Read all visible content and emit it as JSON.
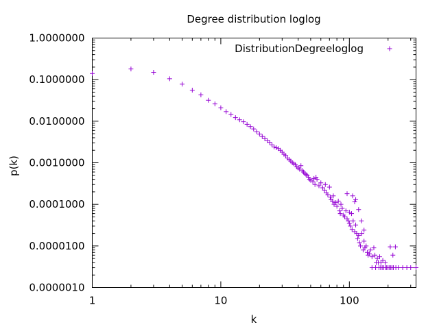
{
  "chart_data": {
    "type": "scatter",
    "title": "Degree distribution loglog",
    "xlabel": "k",
    "ylabel": "p(k)",
    "x_scale": "log",
    "y_scale": "log",
    "xlim": [
      1,
      330
    ],
    "ylim": [
      1e-06,
      1
    ],
    "x_ticks": [
      {
        "value": 1,
        "label": "1"
      },
      {
        "value": 10,
        "label": "10"
      },
      {
        "value": 100,
        "label": "100"
      }
    ],
    "y_ticks": [
      {
        "value": 1e-06,
        "label": "0.0000010"
      },
      {
        "value": 1e-05,
        "label": "0.0000100"
      },
      {
        "value": 0.0001,
        "label": "0.0001000"
      },
      {
        "value": 0.001,
        "label": "0.0010000"
      },
      {
        "value": 0.01,
        "label": "0.0100000"
      },
      {
        "value": 0.1,
        "label": "0.1000000"
      },
      {
        "value": 1,
        "label": "1.0000000"
      }
    ],
    "grid": false,
    "legend": {
      "position": "top-right"
    },
    "color": "#9400d3",
    "series": [
      {
        "name": "DistributionDegreeloglog",
        "marker": "plus",
        "points": [
          [
            1,
            0.14
          ],
          [
            2,
            0.18
          ],
          [
            3,
            0.15
          ],
          [
            4,
            0.105
          ],
          [
            5,
            0.078
          ],
          [
            6,
            0.056
          ],
          [
            7,
            0.043
          ],
          [
            8,
            0.032
          ],
          [
            9,
            0.026
          ],
          [
            10,
            0.021
          ],
          [
            11,
            0.017
          ],
          [
            12,
            0.0145
          ],
          [
            13,
            0.0122
          ],
          [
            14,
            0.0108
          ],
          [
            15,
            0.0097
          ],
          [
            16,
            0.0084
          ],
          [
            17,
            0.0074
          ],
          [
            18,
            0.0065
          ],
          [
            19,
            0.0056
          ],
          [
            20,
            0.0049
          ],
          [
            21,
            0.0043
          ],
          [
            22,
            0.0038
          ],
          [
            23,
            0.0034
          ],
          [
            24,
            0.0031
          ],
          [
            25,
            0.0027
          ],
          [
            26,
            0.0024
          ],
          [
            27,
            0.0023
          ],
          [
            28,
            0.0022
          ],
          [
            29,
            0.002
          ],
          [
            30,
            0.0018
          ],
          [
            31,
            0.0016
          ],
          [
            32,
            0.0015
          ],
          [
            33,
            0.0013
          ],
          [
            34,
            0.0012
          ],
          [
            35,
            0.0011
          ],
          [
            36,
            0.001
          ],
          [
            37,
            0.00095
          ],
          [
            38,
            0.0009
          ],
          [
            39,
            0.0008
          ],
          [
            40,
            0.00075
          ],
          [
            41,
            0.0007
          ],
          [
            42,
            0.00085
          ],
          [
            43,
            0.00065
          ],
          [
            44,
            0.0006
          ],
          [
            45,
            0.00055
          ],
          [
            46,
            0.00052
          ],
          [
            47,
            0.0005
          ],
          [
            48,
            0.00045
          ],
          [
            49,
            0.0004
          ],
          [
            50,
            0.00038
          ],
          [
            52,
            0.00035
          ],
          [
            53,
            0.00042
          ],
          [
            54,
            0.0003
          ],
          [
            55,
            0.00045
          ],
          [
            56,
            0.0004
          ],
          [
            58,
            0.00028
          ],
          [
            60,
            0.00033
          ],
          [
            62,
            0.00025
          ],
          [
            64,
            0.00022
          ],
          [
            65,
            0.0003
          ],
          [
            66,
            0.00019
          ],
          [
            68,
            0.00017
          ],
          [
            70,
            0.00026
          ],
          [
            71,
            0.00015
          ],
          [
            72,
            0.00013
          ],
          [
            74,
            0.00012
          ],
          [
            75,
            0.00016
          ],
          [
            76,
            0.0001
          ],
          [
            78,
            0.00011
          ],
          [
            80,
            9e-05
          ],
          [
            82,
            0.00012
          ],
          [
            84,
            7e-05
          ],
          [
            85,
            6e-05
          ],
          [
            86,
            0.0001
          ],
          [
            88,
            8e-05
          ],
          [
            90,
            5.5e-05
          ],
          [
            92,
            5e-05
          ],
          [
            94,
            7e-05
          ],
          [
            96,
            4.5e-05
          ],
          [
            98,
            4e-05
          ],
          [
            100,
            3.5e-05
          ],
          [
            102,
            3e-05
          ],
          [
            104,
            6e-05
          ],
          [
            105,
            2.5e-05
          ],
          [
            107,
            4e-05
          ],
          [
            110,
            2.2e-05
          ],
          [
            112,
            3.2e-05
          ],
          [
            114,
            2e-05
          ],
          [
            116,
            1.5e-05
          ],
          [
            118,
            1.8e-05
          ],
          [
            120,
            1.2e-05
          ],
          [
            122,
            1e-05
          ],
          [
            125,
            2e-05
          ],
          [
            128,
            8e-06
          ],
          [
            130,
            1.3e-05
          ],
          [
            132,
            9e-06
          ],
          [
            135,
            1e-05
          ],
          [
            138,
            7e-06
          ],
          [
            140,
            6e-06
          ],
          [
            143,
            6.5e-06
          ],
          [
            146,
            8e-06
          ],
          [
            150,
            5.5e-06
          ],
          [
            155,
            9e-06
          ],
          [
            158,
            6e-06
          ],
          [
            162,
            4e-06
          ],
          [
            165,
            5e-06
          ],
          [
            168,
            4e-06
          ],
          [
            172,
            5.5e-06
          ],
          [
            176,
            4e-06
          ],
          [
            182,
            4.5e-06
          ],
          [
            190,
            4e-06
          ],
          [
            208,
            9.5e-06
          ],
          [
            218,
            6e-06
          ],
          [
            228,
            9.5e-06
          ],
          [
            112,
            0.00013
          ],
          [
            106,
            0.00016
          ],
          [
            118,
            7.5e-05
          ],
          [
            96,
            0.00018
          ],
          [
            110,
            0.000115
          ],
          [
            100,
            6.5e-05
          ],
          [
            124,
            4e-05
          ],
          [
            130,
            2.4e-05
          ],
          [
            150,
            3e-06
          ],
          [
            160,
            3e-06
          ],
          [
            170,
            3e-06
          ],
          [
            175,
            3e-06
          ],
          [
            180,
            3e-06
          ],
          [
            185,
            3e-06
          ],
          [
            190,
            3e-06
          ],
          [
            195,
            3e-06
          ],
          [
            200,
            3e-06
          ],
          [
            205,
            3e-06
          ],
          [
            210,
            3e-06
          ],
          [
            215,
            3e-06
          ],
          [
            220,
            3e-06
          ],
          [
            230,
            3e-06
          ],
          [
            240,
            3e-06
          ],
          [
            260,
            3e-06
          ],
          [
            280,
            3e-06
          ],
          [
            300,
            3e-06
          ],
          [
            330,
            3e-06
          ]
        ]
      }
    ]
  }
}
